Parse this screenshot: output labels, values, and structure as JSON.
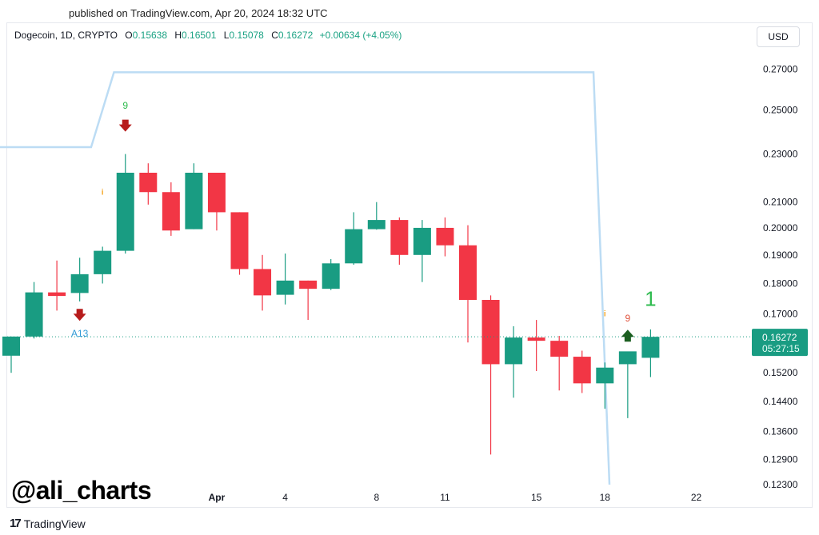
{
  "published": "published on TradingView.com, Apr 20, 2024 18:32 UTC",
  "legend": {
    "symbol": "Dogecoin, 1D, CRYPTO",
    "o_label": "O",
    "o_value": "0.15638",
    "h_label": "H",
    "h_value": "0.16501",
    "l_label": "L",
    "l_value": "0.15078",
    "c_label": "C",
    "c_value": "0.16272",
    "change": "+0.00634 (+4.05%)"
  },
  "currency_button": "USD",
  "watermark": "@ali_charts",
  "footer_brand": "TradingView",
  "colors": {
    "up": "#199c82",
    "down": "#f23645",
    "envelope": "#bcdcf4",
    "price_line": "#199c82",
    "annotation_blue": "#2f9ad6",
    "annotation_green": "#2fbb4f",
    "annotation_red": "#e0523c",
    "arrow_down": "#b71c1c",
    "arrow_up": "#1b5e20",
    "orange": "#f5a623"
  },
  "chart_data": {
    "type": "candlestick",
    "title": "",
    "y_scale": "log",
    "ylim": [
      0.123,
      0.282
    ],
    "y_ticks": [
      "0.27000",
      "0.25000",
      "0.23000",
      "0.21000",
      "0.20000",
      "0.19000",
      "0.18000",
      "0.17000",
      "0.15200",
      "0.14400",
      "0.13600",
      "0.12900",
      "0.12300"
    ],
    "x_ticks": [
      {
        "label": "Apr",
        "index": 9
      },
      {
        "label": "4",
        "index": 12
      },
      {
        "label": "8",
        "index": 16
      },
      {
        "label": "11",
        "index": 19
      },
      {
        "label": "15",
        "index": 23
      },
      {
        "label": "18",
        "index": 26
      },
      {
        "label": "22",
        "index": 30
      }
    ],
    "candles": [
      {
        "o": 0.157,
        "h": 0.1628,
        "l": 0.152,
        "c": 0.1628
      },
      {
        "o": 0.1628,
        "h": 0.1805,
        "l": 0.1622,
        "c": 0.177
      },
      {
        "o": 0.177,
        "h": 0.188,
        "l": 0.171,
        "c": 0.1758
      },
      {
        "o": 0.1768,
        "h": 0.189,
        "l": 0.174,
        "c": 0.1832
      },
      {
        "o": 0.1832,
        "h": 0.193,
        "l": 0.18,
        "c": 0.1915
      },
      {
        "o": 0.1915,
        "h": 0.23,
        "l": 0.1905,
        "c": 0.222
      },
      {
        "o": 0.222,
        "h": 0.226,
        "l": 0.209,
        "c": 0.214
      },
      {
        "o": 0.214,
        "h": 0.218,
        "l": 0.197,
        "c": 0.199
      },
      {
        "o": 0.1995,
        "h": 0.226,
        "l": 0.1995,
        "c": 0.222
      },
      {
        "o": 0.222,
        "h": 0.222,
        "l": 0.199,
        "c": 0.206
      },
      {
        "o": 0.206,
        "h": 0.206,
        "l": 0.183,
        "c": 0.185
      },
      {
        "o": 0.185,
        "h": 0.19,
        "l": 0.171,
        "c": 0.176
      },
      {
        "o": 0.1762,
        "h": 0.1905,
        "l": 0.173,
        "c": 0.181
      },
      {
        "o": 0.181,
        "h": 0.181,
        "l": 0.168,
        "c": 0.1782
      },
      {
        "o": 0.1782,
        "h": 0.1885,
        "l": 0.1778,
        "c": 0.187
      },
      {
        "o": 0.187,
        "h": 0.206,
        "l": 0.1865,
        "c": 0.1995
      },
      {
        "o": 0.1995,
        "h": 0.21,
        "l": 0.1993,
        "c": 0.203
      },
      {
        "o": 0.203,
        "h": 0.204,
        "l": 0.1865,
        "c": 0.19
      },
      {
        "o": 0.19,
        "h": 0.203,
        "l": 0.1805,
        "c": 0.2
      },
      {
        "o": 0.2,
        "h": 0.204,
        "l": 0.1895,
        "c": 0.1935
      },
      {
        "o": 0.1935,
        "h": 0.201,
        "l": 0.161,
        "c": 0.1745
      },
      {
        "o": 0.1745,
        "h": 0.176,
        "l": 0.1302,
        "c": 0.1545
      },
      {
        "o": 0.1545,
        "h": 0.166,
        "l": 0.145,
        "c": 0.1625
      },
      {
        "o": 0.1625,
        "h": 0.168,
        "l": 0.1525,
        "c": 0.1615
      },
      {
        "o": 0.1615,
        "h": 0.163,
        "l": 0.147,
        "c": 0.1567
      },
      {
        "o": 0.1567,
        "h": 0.1585,
        "l": 0.1463,
        "c": 0.149
      },
      {
        "o": 0.149,
        "h": 0.155,
        "l": 0.142,
        "c": 0.1535
      },
      {
        "o": 0.1545,
        "h": 0.158,
        "l": 0.1395,
        "c": 0.1583
      },
      {
        "o": 0.15638,
        "h": 0.16501,
        "l": 0.15078,
        "c": 0.16272
      }
    ],
    "envelope": [
      {
        "index": -0.5,
        "y": 0.233
      },
      {
        "index": 3.5,
        "y": 0.233
      },
      {
        "index": 4.5,
        "y": 0.2685
      },
      {
        "index": 25.5,
        "y": 0.2685
      },
      {
        "index": 26.2,
        "y": 0.123
      }
    ],
    "last_price_label": "0.16272",
    "countdown_label": "05:27:15",
    "annotations": [
      {
        "type": "text",
        "text": "9",
        "index": 5,
        "y": 0.2505,
        "color": "annotation_green"
      },
      {
        "type": "arrow_down",
        "index": 5,
        "y": 0.2425,
        "color": "arrow_down"
      },
      {
        "type": "text",
        "text": "i",
        "index": 4,
        "y": 0.213,
        "color": "orange"
      },
      {
        "type": "arrow_down",
        "index": 3,
        "y": 0.1695,
        "color": "arrow_down"
      },
      {
        "type": "text",
        "text": "A13",
        "index": 3,
        "y": 0.1628,
        "color": "annotation_blue"
      },
      {
        "type": "text",
        "text": "i",
        "index": 26,
        "y": 0.1692,
        "color": "orange"
      },
      {
        "type": "text",
        "text": "9",
        "index": 27,
        "y": 0.1675,
        "color": "annotation_red"
      },
      {
        "type": "arrow_up",
        "index": 27,
        "y": 0.1632,
        "color": "arrow_up"
      },
      {
        "type": "text_large",
        "text": "1",
        "index": 28,
        "y": 0.1725,
        "color": "annotation_green"
      }
    ]
  }
}
